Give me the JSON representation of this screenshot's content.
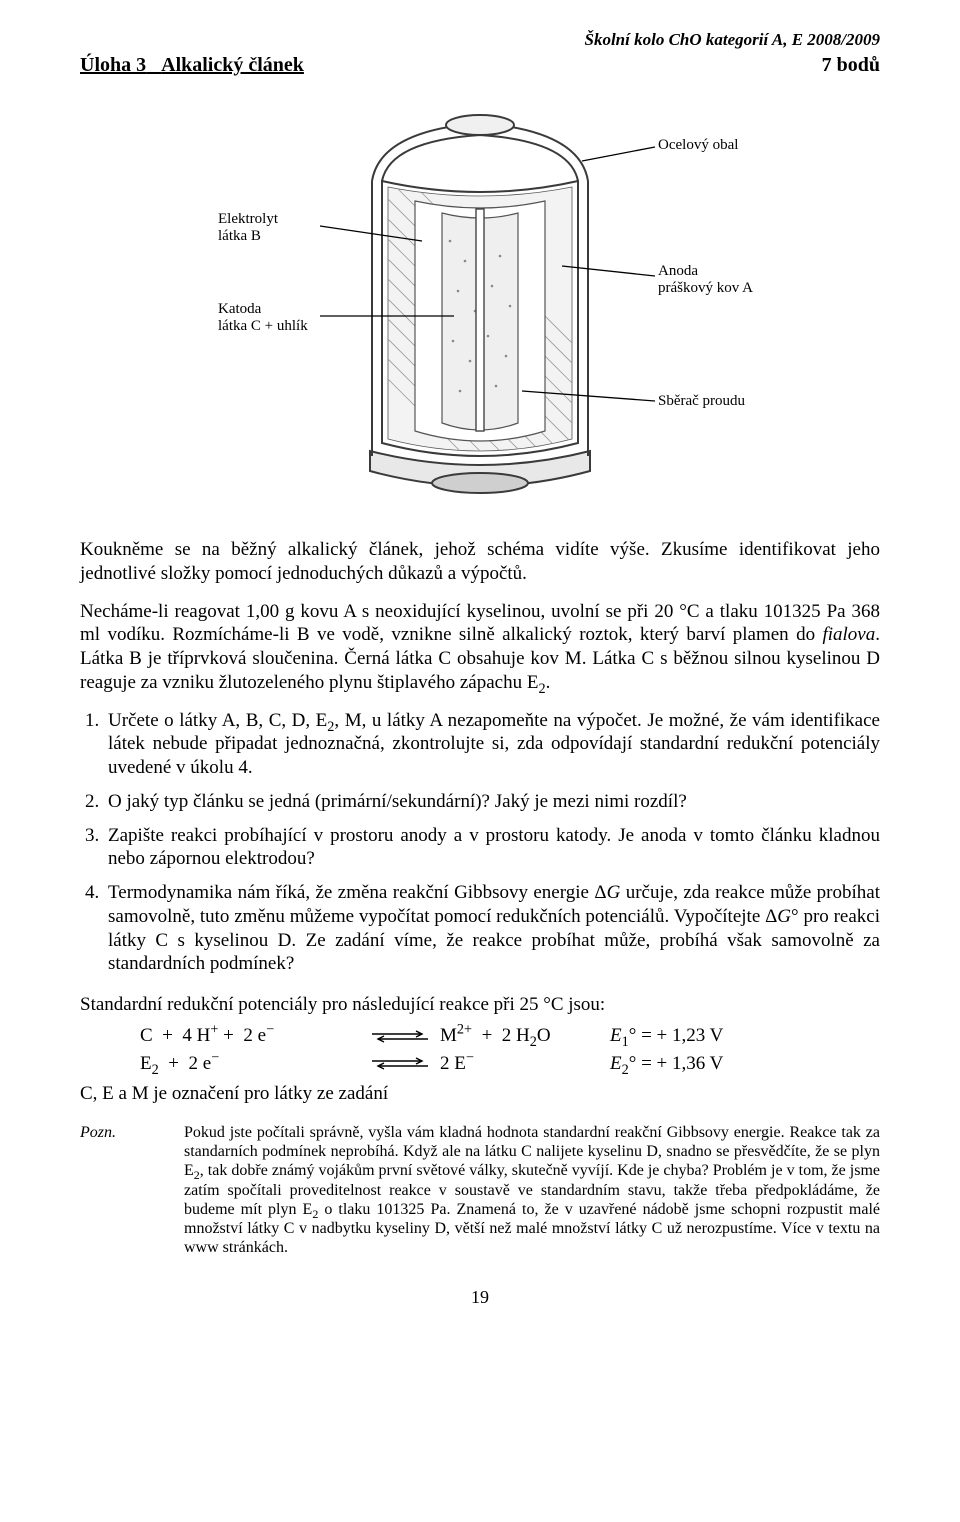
{
  "header": {
    "right": "Školní kolo ChO kategorií A, E 2008/2009"
  },
  "task": {
    "number": "Úloha 3",
    "title": "Alkalický článek",
    "points": "7 bodů"
  },
  "figure": {
    "labels": {
      "steel_casing": "Ocelový obal",
      "electrolyte_l1": "Elektrolyt",
      "electrolyte_l2": "látka B",
      "cathode_l1": "Katoda",
      "cathode_l2": "látka C + uhlík",
      "anode_l1": "Anoda",
      "anode_l2": "práškový kov A",
      "current_collector": "Sběrač proudu"
    },
    "colors": {
      "outline": "#3a3a3a",
      "hatch": "#777777",
      "inner_fill": "#f2f2f2"
    }
  },
  "paragraphs": {
    "p1": "Koukněme se na běžný alkalický článek, jehož schéma vidíte výše. Zkusíme identifikovat jeho jednotlivé složky pomocí jednoduchých důkazů a výpočtů.",
    "p2_html": "Necháme-li reagovat 1,00 g kovu A s neoxidující kyselinou, uvolní se při 20 °C a tlaku 101325 Pa 368 ml vodíku. Rozmícháme-li B ve vodě, vznikne silně alkalický roztok, který barví plamen do <i>fialova</i>. Látka B je tříprvková sloučenina. Černá látka C obsahuje kov M. Látka C s běžnou silnou kyselinou D reaguje za vzniku žlutozeleného plynu štiplavého zápachu E<sub>2</sub>."
  },
  "questions": {
    "q1_html": "Určete o látky A, B, C, D, E<sub>2</sub>, M, u látky A nezapomeňte na výpočet. Je možné, že vám identifikace látek nebude připadat jednoznačná, zkontrolujte si, zda odpovídají standardní redukční potenciály uvedené v úkolu 4.",
    "q2": "O jaký typ článku se jedná (primární/sekundární)? Jaký je mezi nimi rozdíl?",
    "q3": "Zapište reakci probíhající v prostoru anody a v prostoru katody. Je anoda v tomto článku kladnou nebo zápornou elektrodou?",
    "q4_html": "Termodynamika nám říká, že změna reakční Gibbsovy energie Δ<i>G</i> určuje, zda reakce může probíhat samovolně, tuto změnu můžeme vypočítat pomocí redukčních potenciálů. Vypočítejte Δ<i>G</i>° pro reakci látky C s kyselinou D. Ze zadání víme, že reakce probíhat může, probíhá však samovolně za standardních podmínek?"
  },
  "potentials": {
    "intro": "Standardní redukční potenciály pro následující reakce při 25 °C jsou:",
    "eq1": {
      "left_html": "C &nbsp;+ &nbsp;4 H<sup>+</sup> + &nbsp;2 e<sup>−</sup>",
      "right_html": "M<sup>2+</sup> &nbsp;+ &nbsp;2 H<sub>2</sub>O",
      "value_html": "<i>E</i><sub>1</sub>° = + 1,23 V"
    },
    "eq2": {
      "left_html": "E<sub>2</sub> &nbsp;+ &nbsp;2 e<sup>−</sup>",
      "right_html": "2 E<sup>−</sup>",
      "value_html": "<i>E</i><sub>2</sub>° = + 1,36 V"
    },
    "below": "C, E a M je označení pro látky ze zadání"
  },
  "note": {
    "label": "Pozn.",
    "text_html": "Pokud jste počítali správně, vyšla vám kladná hodnota standardní reakční Gibbsovy energie. Reakce tak za standarních podmínek neprobíhá. Když ale na látku C nalijete kyselinu D, snadno se přesvědčíte, že se plyn E<sub>2</sub>, tak dobře známý vojákům první světové války, skutečně vyvíjí. Kde je chyba? Problém je v tom, že jsme zatím spočítali proveditelnost reakce v soustavě ve standardním stavu, takže třeba předpokládáme, že budeme mít plyn E<sub>2</sub> o tlaku 101325 Pa. Znamená to, že v uzavřené nádobě jsme schopni rozpustit malé množství látky C v nadbytku kyseliny D, větší než malé množství látky C už nerozpustíme. Více v textu na www stránkách."
  },
  "page_number": "19",
  "typography": {
    "body_font_size_pt": 12,
    "header_font_size_pt": 11,
    "note_font_size_pt": 10,
    "font_family": "Times New Roman",
    "text_color": "#000000",
    "background_color": "#ffffff"
  }
}
